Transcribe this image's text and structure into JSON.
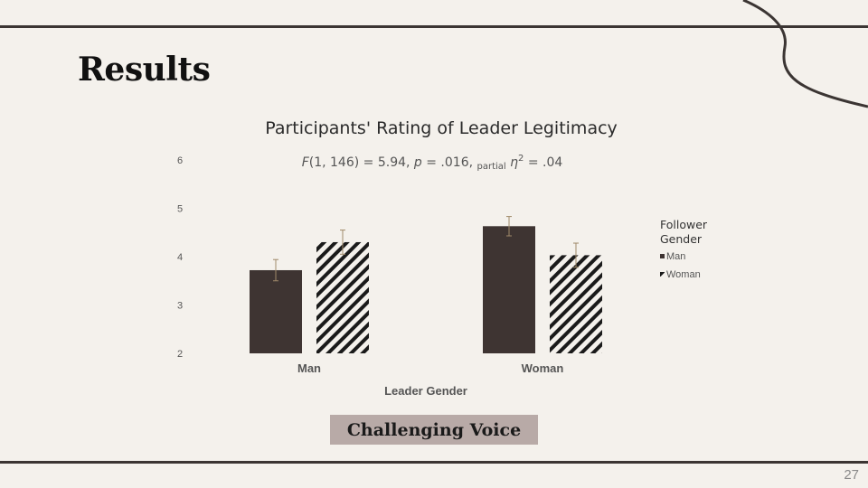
{
  "slide": {
    "title": "Results",
    "page_number": "27",
    "condition_label": "Challenging Voice"
  },
  "stats": {
    "f_letter": "F",
    "f_rest": "(1, 146) = 5.94, ",
    "p_letter": "p",
    "p_rest": " = .016, ",
    "partial": "partial",
    "eta": "η",
    "sq": "2",
    "eta_rest": " = .04"
  },
  "colors": {
    "background": "#f4f1ec",
    "bar_solid": "#3e3432",
    "bar_hatch": "#1a1a1a",
    "error_bar": "#a08a6a",
    "rule": "#3b3533"
  },
  "chart_data": {
    "type": "bar",
    "title": "Participants' Rating of Leader Legitimacy",
    "xlabel": "Leader Gender",
    "ylabel": "",
    "ylim": [
      2,
      6
    ],
    "yticks": [
      "2",
      "3",
      "4",
      "5",
      "6"
    ],
    "categories": [
      "Man",
      "Woman"
    ],
    "legend_title": "Follower Gender",
    "legend_position": "right",
    "grid": false,
    "series": [
      {
        "name": "Man",
        "pattern": "solid",
        "values": [
          3.72,
          4.63
        ],
        "errors": [
          0.22,
          0.2
        ]
      },
      {
        "name": "Woman",
        "pattern": "diagonal-hatch",
        "values": [
          4.3,
          4.03
        ],
        "errors": [
          0.25,
          0.25
        ]
      }
    ]
  }
}
